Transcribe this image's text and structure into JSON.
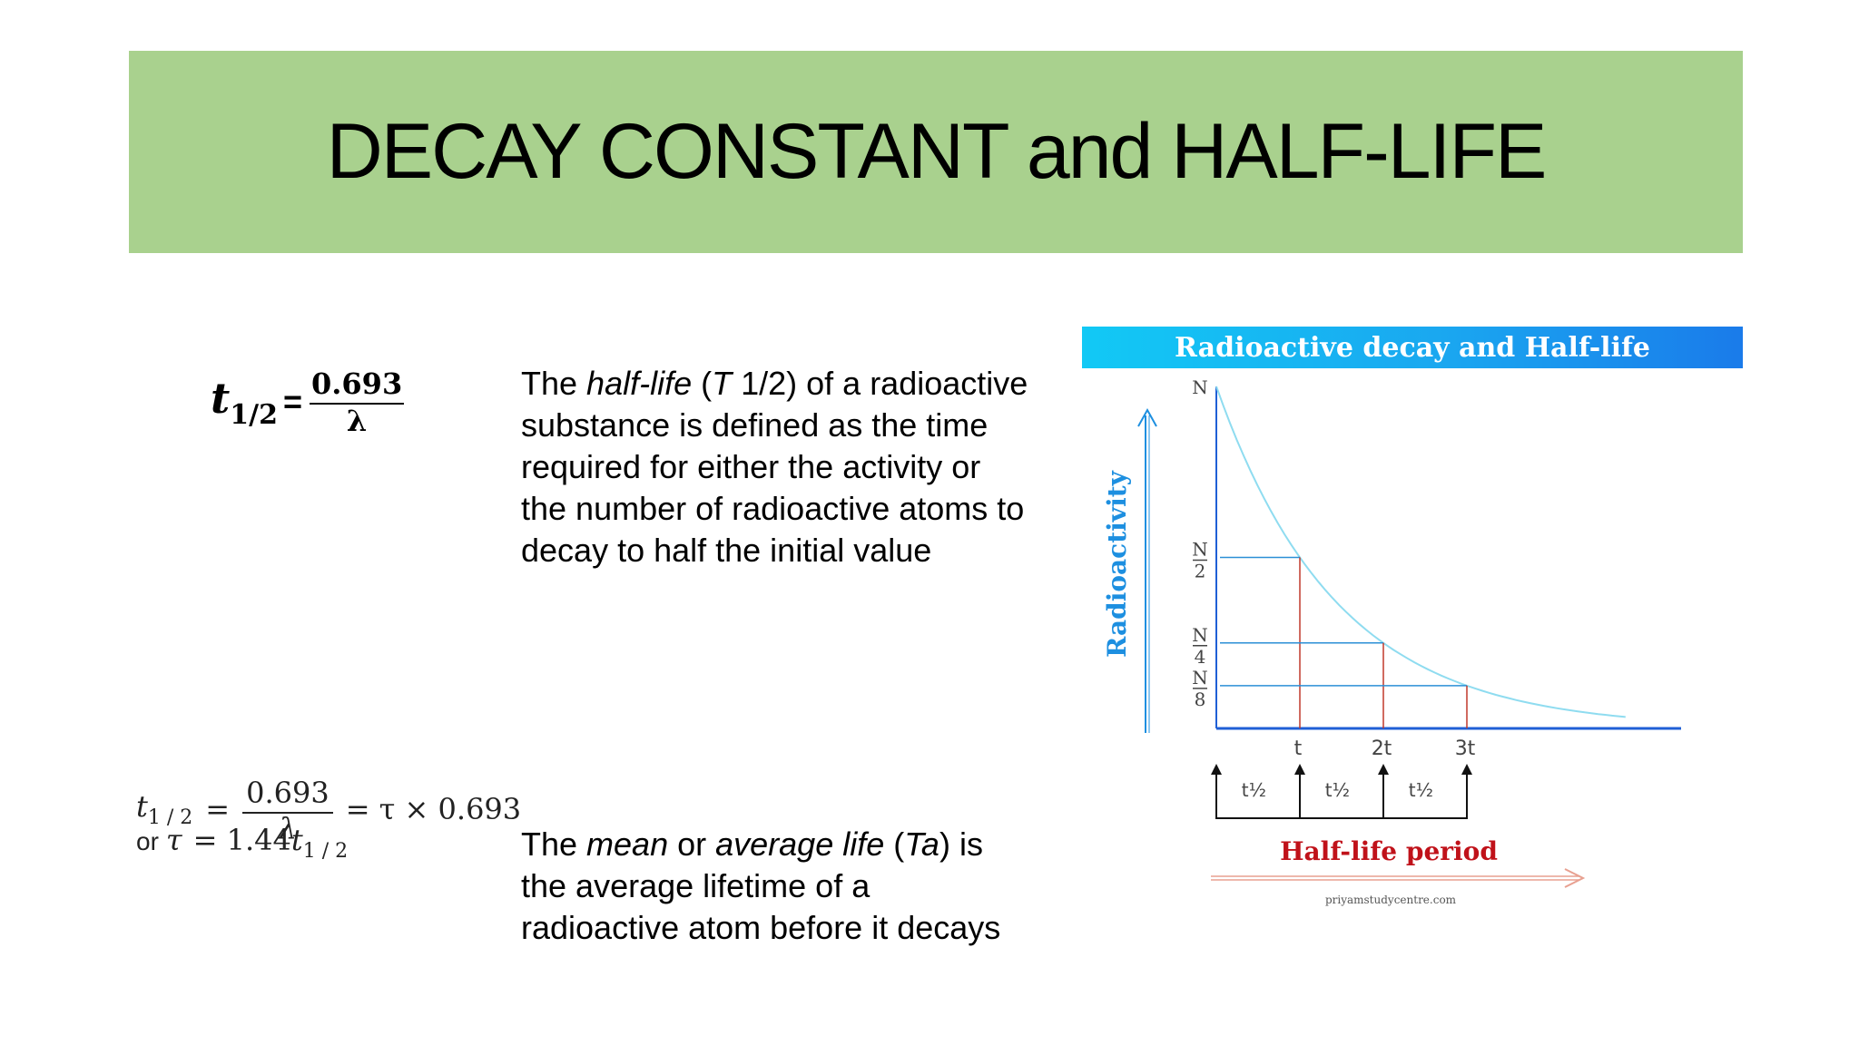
{
  "slide": {
    "title": "DECAY CONSTANT and HALF-LIFE",
    "title_bar_color": "#a9d18e"
  },
  "formula1": {
    "t": "t",
    "sub": "1/2",
    "eq": "=",
    "numerator": "0.693",
    "denominator": "λ"
  },
  "formula2": {
    "t": "t",
    "sub": "1 / 2",
    "eq1": "=",
    "numerator": "0.693",
    "denominator": "λ",
    "rhs": "= τ × 0.693",
    "or_word": "or",
    "tau": "τ",
    "rhs2": "= 1.44",
    "t2": "t",
    "sub2": "1 / 2"
  },
  "para1": {
    "a": "The ",
    "b": "half-life",
    "c": " (",
    "d": "T",
    "e": " 1/2) of a radioactive substance is defined as the time required for either the activity or the number of radioactive atoms to decay to half the initial value"
  },
  "para2": {
    "a": "The ",
    "b": "mean",
    "c": " or ",
    "d": "average life",
    "e": " (",
    "f": "Ta",
    "g": ") is the average lifetime of a radioactive atom before it decays"
  },
  "chart_data": {
    "type": "line",
    "title": "Radioactive decay and Half-life",
    "ylabel": "Radioactivity",
    "xlabel": "Half-life period",
    "y_ticks": [
      {
        "label": "N",
        "value": 1
      },
      {
        "label": "N/2",
        "value": 0.5
      },
      {
        "label": "N/4",
        "value": 0.25
      },
      {
        "label": "N/8",
        "value": 0.125
      }
    ],
    "x_ticks": [
      {
        "label": "t",
        "value": 1
      },
      {
        "label": "2t",
        "value": 2
      },
      {
        "label": "3t",
        "value": 3
      }
    ],
    "x": [
      0,
      1,
      2,
      3
    ],
    "series": [
      {
        "values": [
          1,
          0.5,
          0.25,
          0.125
        ]
      }
    ],
    "period_label": "t½",
    "period_count": 3,
    "source": "priyamstudycentre.com",
    "colors": {
      "curve": "#8fdcf0",
      "guides": "#2b8fd6",
      "drops": "#c0392b",
      "axis": "#1f5fd6",
      "ylabel": "#1d8fe0",
      "xlabel": "#c0121a"
    }
  }
}
